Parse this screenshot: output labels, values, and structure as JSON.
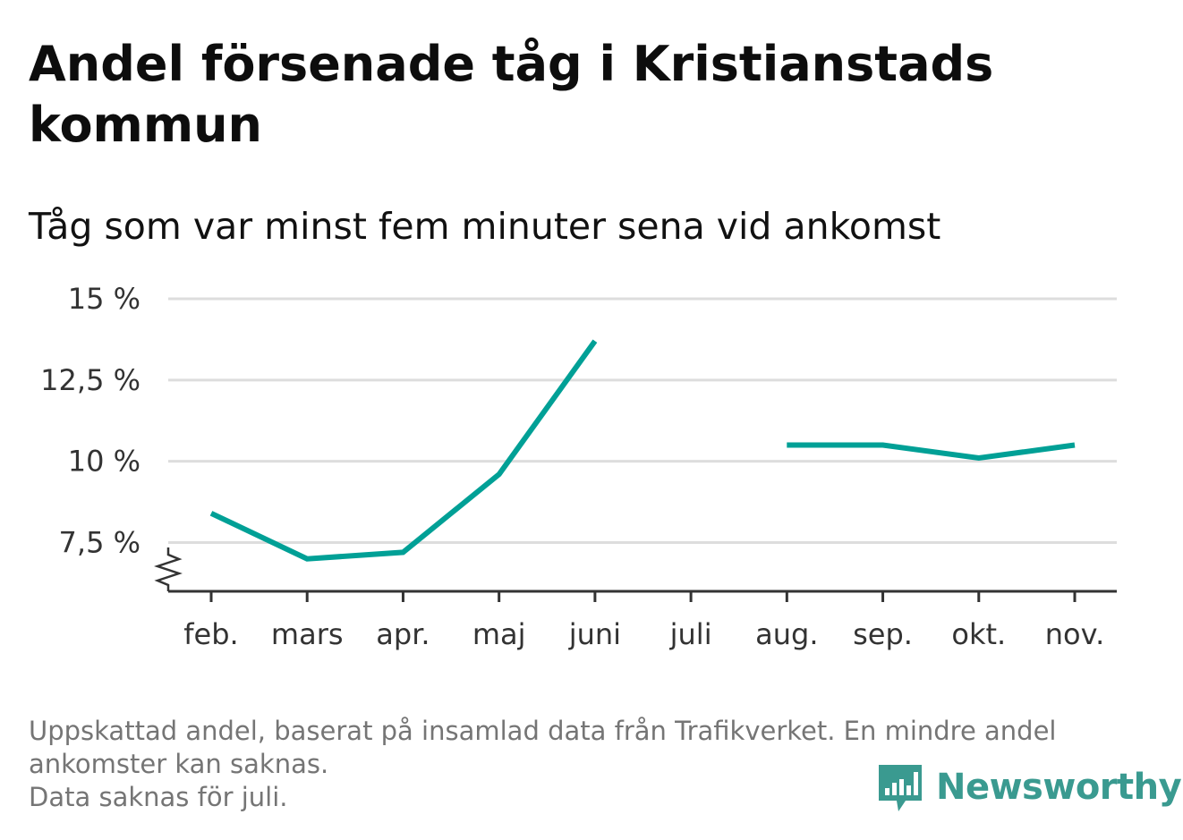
{
  "title": "Andel försenade tåg i Kristianstads kommun",
  "subtitle": "Tåg som var minst fem minuter sena vid ankomst",
  "footnote": {
    "line1": "Uppskattad andel, baserat på insamlad data från Trafikverket. En mindre andel",
    "line2": "ankomster kan saknas.",
    "line3": "Data saknas för juli."
  },
  "logo": {
    "text": "Newsworthy",
    "icon": "newsworthy-bar-chart-icon",
    "color": "#3a9a90"
  },
  "chart_data": {
    "type": "line",
    "title": "Andel försenade tåg i Kristianstads kommun",
    "subtitle": "Tåg som var minst fem minuter sena vid ankomst",
    "categories": [
      "feb.",
      "mars",
      "apr.",
      "maj",
      "juni",
      "juli",
      "aug.",
      "sep.",
      "okt.",
      "nov."
    ],
    "series": [
      {
        "values": [
          8.4,
          7.0,
          7.2,
          9.6,
          13.7,
          null,
          10.5,
          10.5,
          10.1,
          10.5
        ],
        "color": "#00a096"
      }
    ],
    "yticks": [
      7.5,
      10,
      12.5,
      15
    ],
    "ytick_labels": [
      "7,5 %",
      "10 %",
      "12,5 %",
      "15 %"
    ],
    "ylim": [
      6,
      15
    ],
    "y_axis_break": true,
    "grid": true,
    "legend": "none",
    "grid_color": "#dddddd",
    "axis_color": "#333333"
  }
}
